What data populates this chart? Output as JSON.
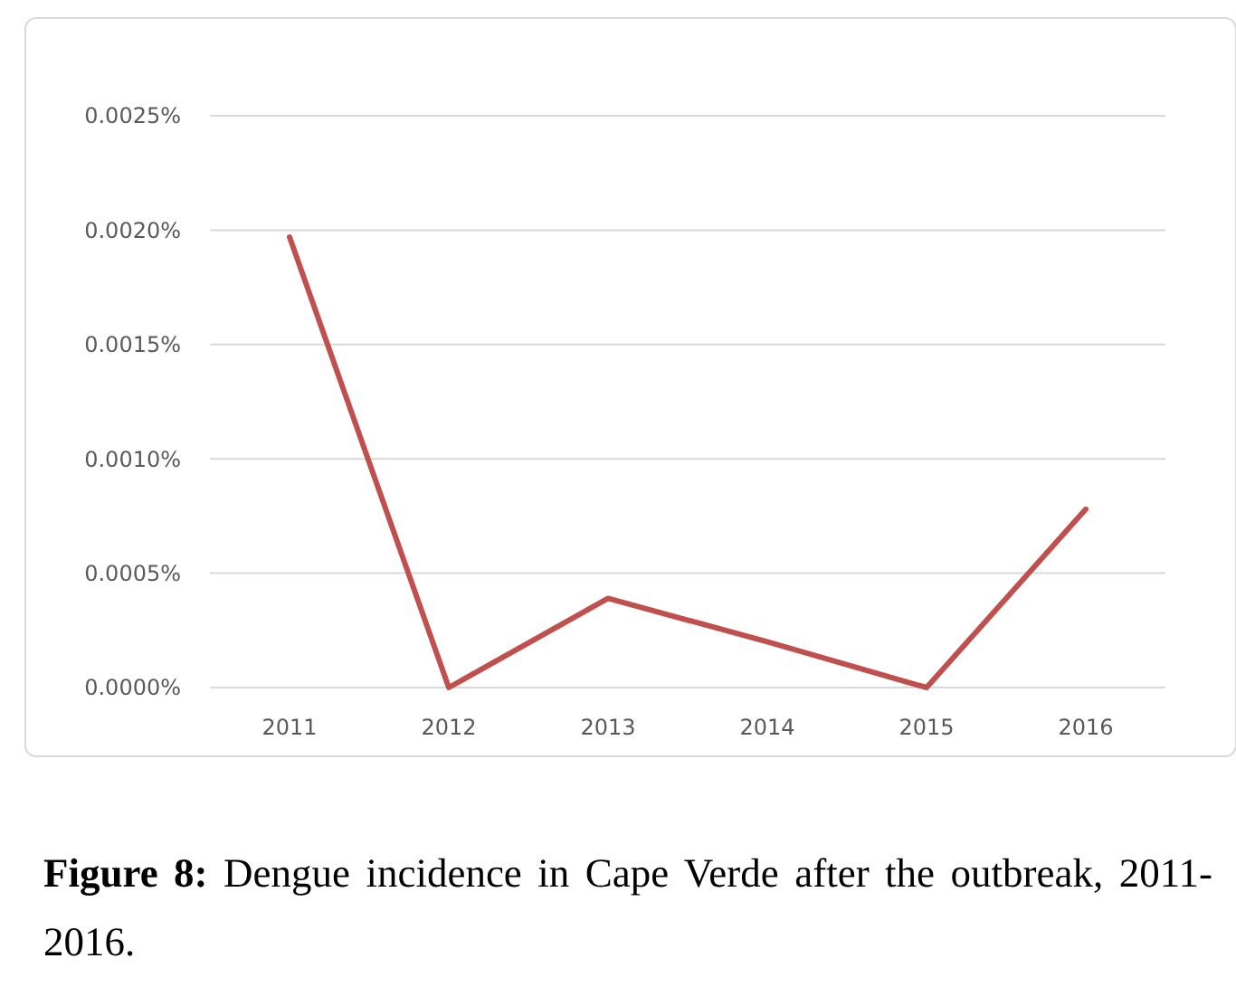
{
  "chart_data": {
    "type": "line",
    "title": "Figure 8: Dengue incidence in Cape Verde after the outbreak, 2011-2016.",
    "categories": [
      "2011",
      "2012",
      "2013",
      "2014",
      "2015",
      "2016"
    ],
    "series": [
      {
        "color": "#c0504d",
        "values": [
          0.00197,
          0,
          0.00039,
          0.0002,
          0,
          0.00078
        ]
      }
    ],
    "ylim": [
      0,
      0.0025
    ],
    "yticks": [
      {
        "value": 0,
        "label": "0.0000%"
      },
      {
        "value": 0.0005,
        "label": "0.0005%"
      },
      {
        "value": 0.001,
        "label": "0.0010%"
      },
      {
        "value": 0.0015,
        "label": "0.0015%"
      },
      {
        "value": 0.002,
        "label": "0.0020%"
      },
      {
        "value": 0.0025,
        "label": "0.0025%"
      }
    ],
    "grid": "y",
    "marker": "none",
    "line_style": "solid"
  }
}
